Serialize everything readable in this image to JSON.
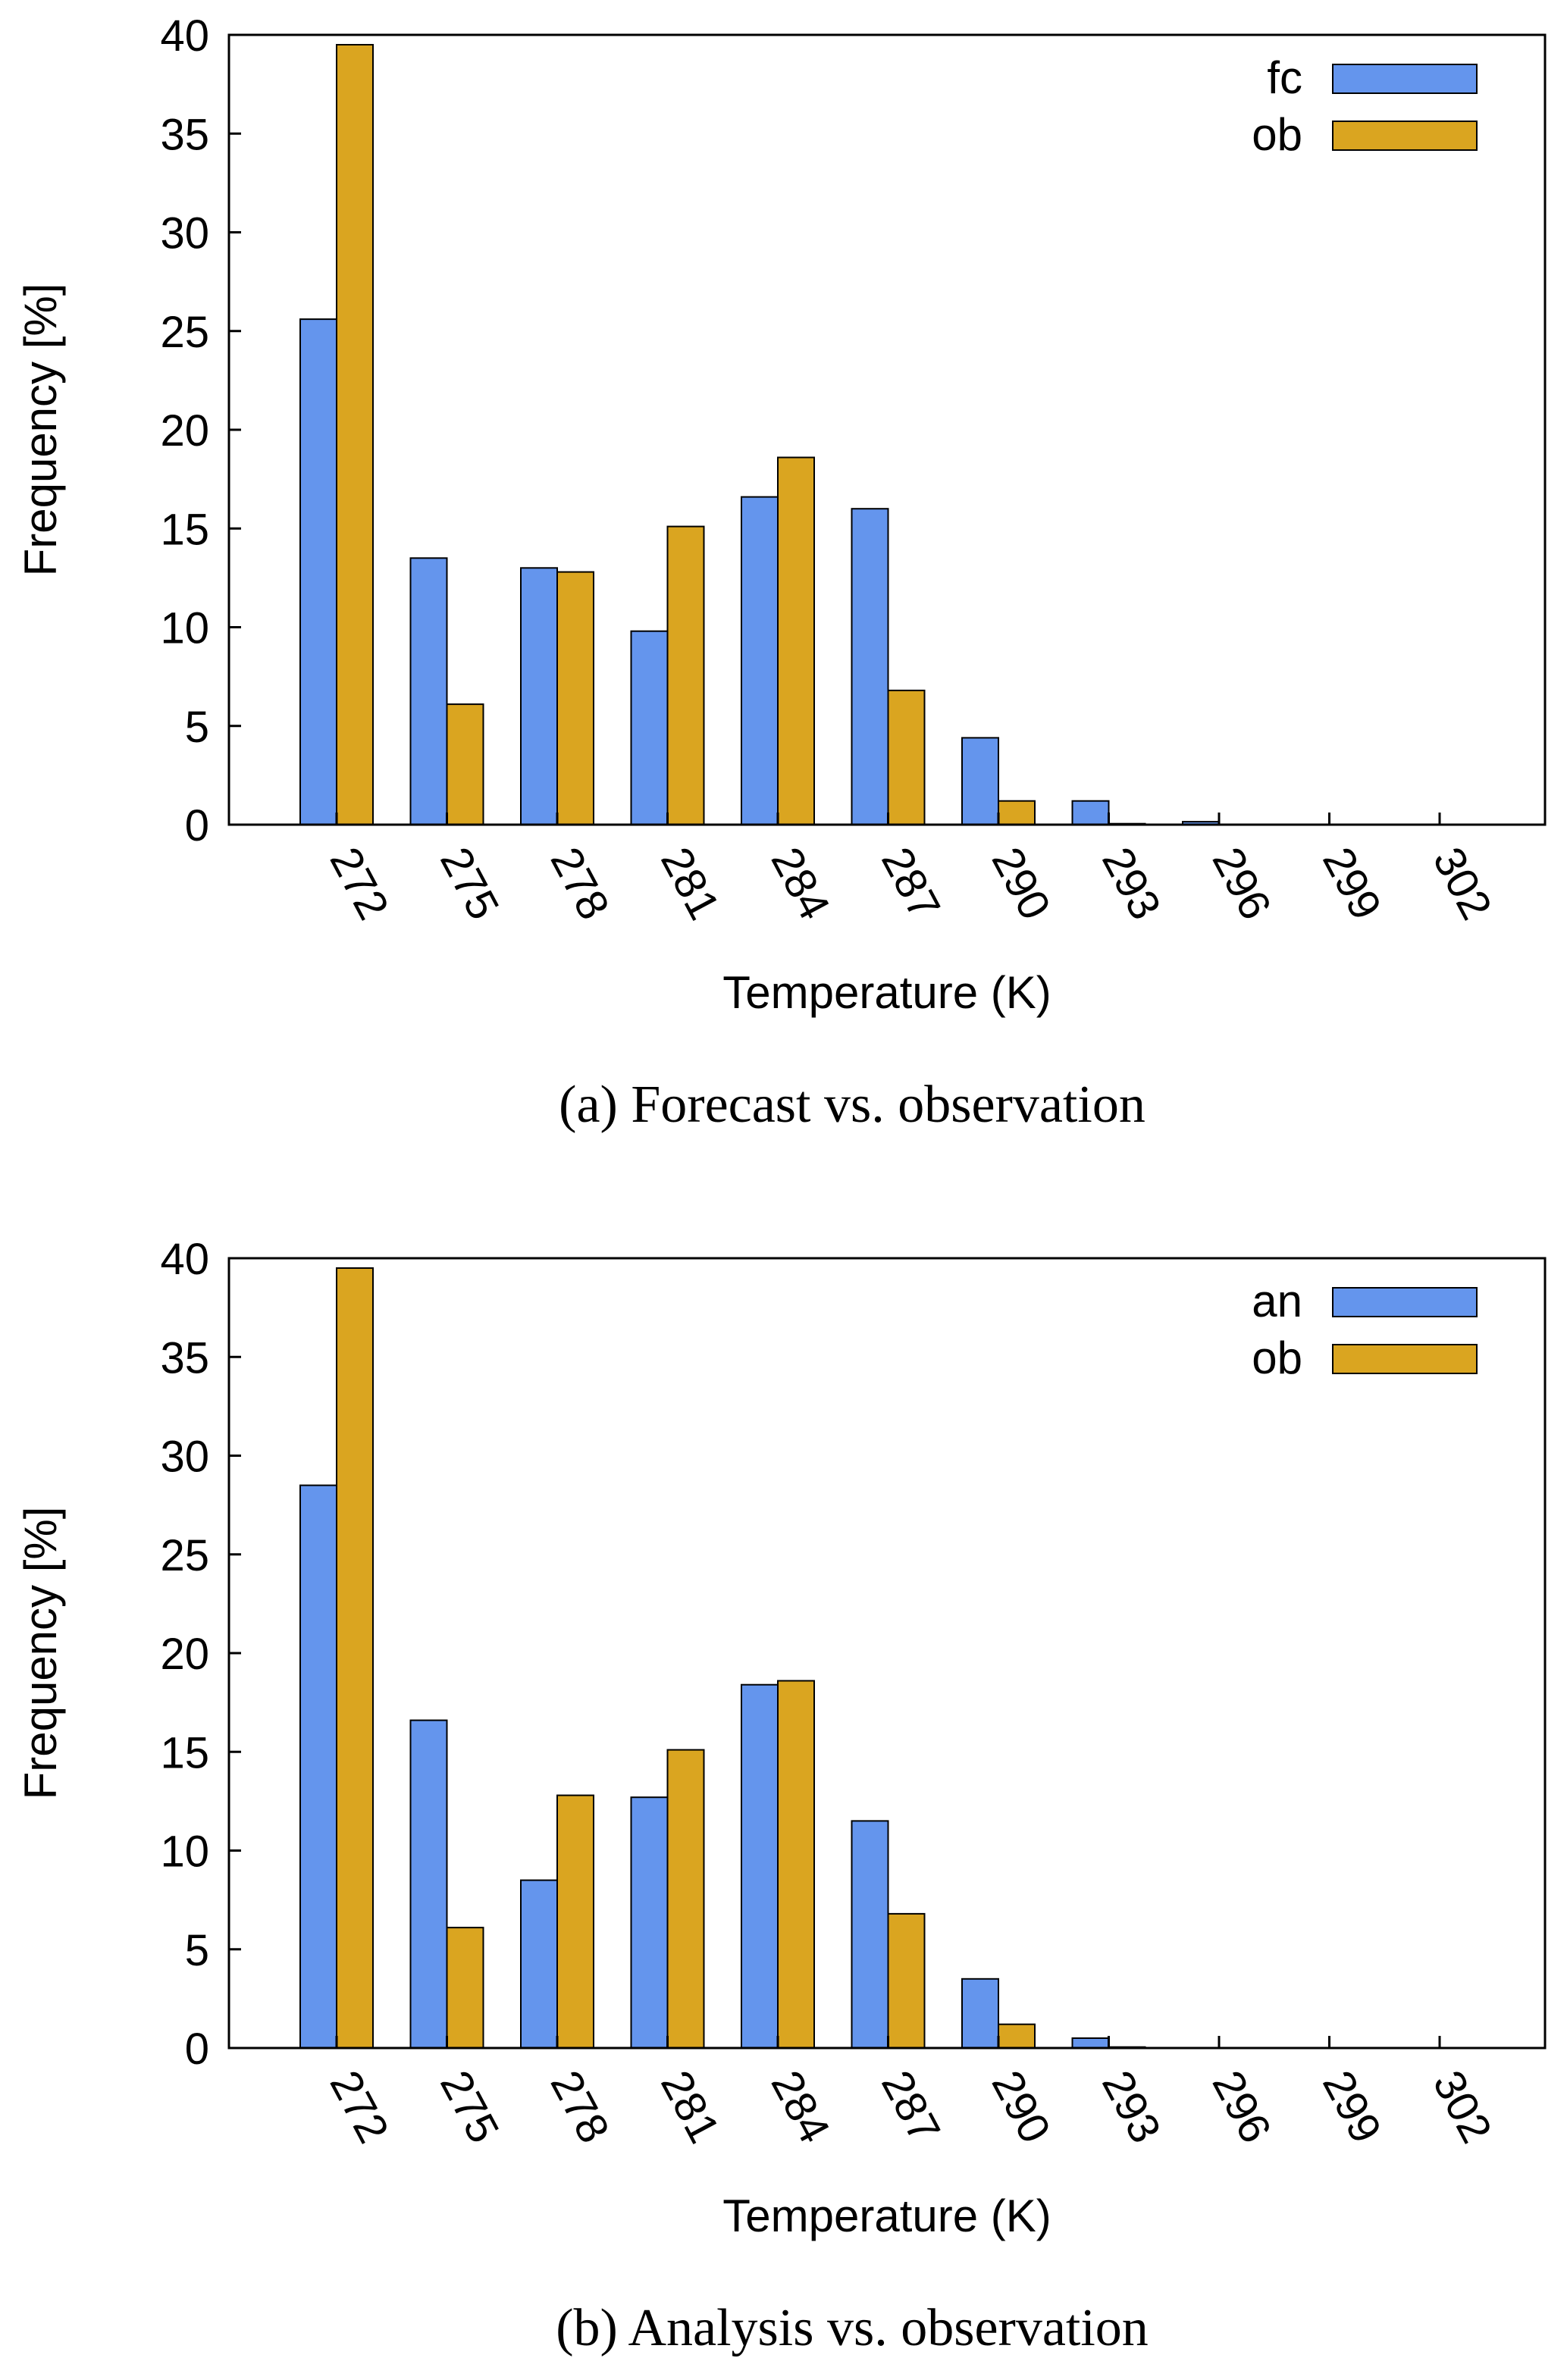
{
  "colors": {
    "series_a": "#6495ed",
    "series_b": "#daa520",
    "axis": "#000000",
    "background": "#ffffff"
  },
  "chart_data": [
    {
      "type": "bar",
      "caption": "(a) Forecast vs. observation",
      "xlabel": "Temperature (K)",
      "ylabel": "Frequency [%]",
      "ylim": [
        0,
        40
      ],
      "yticks": [
        0,
        5,
        10,
        15,
        20,
        25,
        30,
        35,
        40
      ],
      "categories": [
        "272",
        "275",
        "278",
        "281",
        "284",
        "287",
        "290",
        "293",
        "296",
        "299",
        "302"
      ],
      "legend_position": "top-right",
      "grid": false,
      "series": [
        {
          "name": "fc",
          "color": "#6495ed",
          "values": [
            25.6,
            13.5,
            13.0,
            9.8,
            16.6,
            16.0,
            4.4,
            1.2,
            0.15,
            0,
            0
          ]
        },
        {
          "name": "ob",
          "color": "#daa520",
          "values": [
            39.5,
            6.1,
            12.8,
            15.1,
            18.6,
            6.8,
            1.2,
            0.05,
            0,
            0,
            0
          ]
        }
      ]
    },
    {
      "type": "bar",
      "caption": "(b) Analysis vs. observation",
      "xlabel": "Temperature (K)",
      "ylabel": "Frequency [%]",
      "ylim": [
        0,
        40
      ],
      "yticks": [
        0,
        5,
        10,
        15,
        20,
        25,
        30,
        35,
        40
      ],
      "categories": [
        "272",
        "275",
        "278",
        "281",
        "284",
        "287",
        "290",
        "293",
        "296",
        "299",
        "302"
      ],
      "legend_position": "top-right",
      "grid": false,
      "series": [
        {
          "name": "an",
          "color": "#6495ed",
          "values": [
            28.5,
            16.6,
            8.5,
            12.7,
            18.4,
            11.5,
            3.5,
            0.5,
            0,
            0,
            0
          ]
        },
        {
          "name": "ob",
          "color": "#daa520",
          "values": [
            39.5,
            6.1,
            12.8,
            15.1,
            18.6,
            6.8,
            1.2,
            0.05,
            0,
            0,
            0
          ]
        }
      ]
    }
  ]
}
